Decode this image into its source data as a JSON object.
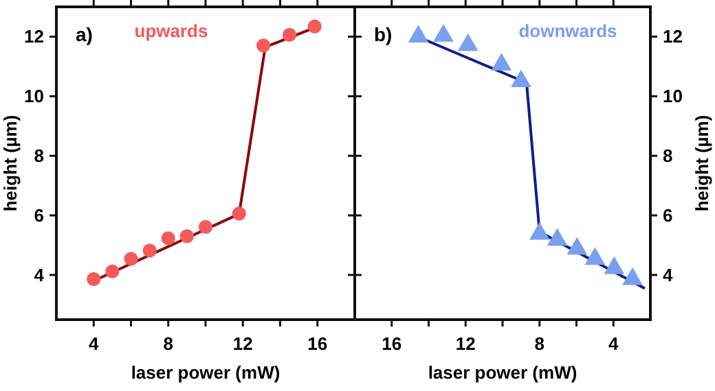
{
  "chart_data": [
    {
      "type": "line",
      "xlabel": "laser power (mW)",
      "ylabel": "height (µm)",
      "annotations": [
        "a)"
      ],
      "xlim": [
        2,
        18
      ],
      "ylim": [
        2.5,
        13
      ],
      "xticks": [
        {
          "value": 4,
          "label": "4"
        },
        {
          "value": 6,
          "label": null
        },
        {
          "value": 8,
          "label": "8"
        },
        {
          "value": 10,
          "label": null
        },
        {
          "value": 12,
          "label": "12"
        },
        {
          "value": 14,
          "label": null
        },
        {
          "value": 16,
          "label": "16"
        }
      ],
      "yticks": [
        4,
        6,
        8,
        10,
        12
      ],
      "grid": false,
      "legend": "top",
      "series": [
        {
          "type": "scatter",
          "name": "upwards",
          "color": "#f55a5a",
          "marker": "circle",
          "x": [
            4,
            5,
            6,
            7,
            8,
            9,
            10,
            11.8,
            13.1,
            14.5,
            15.85
          ],
          "values": [
            3.86,
            4.12,
            4.54,
            4.82,
            5.23,
            5.3,
            5.61,
            6.06,
            11.7,
            12.06,
            12.34
          ]
        },
        {
          "color": "#8b0a0a",
          "line_style": "solid",
          "x": [
            4,
            11.8,
            13.2,
            15.85
          ],
          "values": [
            3.8,
            6.05,
            11.65,
            12.3
          ]
        }
      ]
    },
    {
      "type": "line",
      "xlabel": "laser power (mW)",
      "ylabel": "height (µm)",
      "annotations": [
        "b)"
      ],
      "xlim": [
        18,
        2
      ],
      "ylim": [
        2.5,
        13
      ],
      "xticks": [
        {
          "value": 16,
          "label": "16"
        },
        {
          "value": 14,
          "label": null
        },
        {
          "value": 12,
          "label": "12"
        },
        {
          "value": 10,
          "label": null
        },
        {
          "value": 8,
          "label": "8"
        },
        {
          "value": 6,
          "label": null
        },
        {
          "value": 4,
          "label": "4"
        }
      ],
      "yticks": [
        4,
        6,
        8,
        10,
        12
      ],
      "grid": false,
      "legend": "top",
      "series": [
        {
          "type": "scatter",
          "name": "downwards",
          "color": "#7a9ff0",
          "marker": "triangle",
          "x": [
            14.56,
            13.2,
            11.87,
            10.06,
            9.0,
            8.0,
            7.04,
            5.97,
            5.0,
            3.96,
            2.97
          ],
          "values": [
            12.0,
            12.03,
            11.72,
            11.06,
            10.5,
            5.38,
            5.18,
            4.88,
            4.54,
            4.23,
            3.86
          ]
        },
        {
          "color": "#0c1f8c",
          "line_style": "solid",
          "x": [
            14.8,
            8.7,
            8.0,
            2.3
          ],
          "values": [
            12.05,
            10.45,
            5.45,
            3.55
          ]
        }
      ]
    }
  ]
}
